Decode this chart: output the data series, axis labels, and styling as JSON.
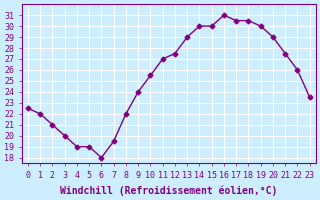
{
  "x": [
    0,
    1,
    2,
    3,
    4,
    5,
    6,
    7,
    8,
    9,
    10,
    11,
    12,
    13,
    14,
    15,
    16,
    17,
    18,
    19,
    20,
    21,
    22,
    23
  ],
  "y": [
    22.5,
    22,
    21,
    20,
    19,
    19,
    18,
    19.5,
    22,
    24,
    25.5,
    27,
    27.5,
    29,
    30,
    30,
    31,
    30.5,
    30.5,
    30,
    29,
    27.5,
    26,
    23.5
  ],
  "line_color": "#800080",
  "marker": "D",
  "marker_size": 2.5,
  "bg_color": "#cceeff",
  "grid_color": "#ffffff",
  "xlabel": "Windchill (Refroidissement éolien,°C)",
  "ylabel_ticks": [
    18,
    19,
    20,
    21,
    22,
    23,
    24,
    25,
    26,
    27,
    28,
    29,
    30,
    31
  ],
  "ylim": [
    17.5,
    32
  ],
  "xlim": [
    -0.5,
    23.5
  ],
  "tick_color": "#800080",
  "label_color": "#800080",
  "font_size": 7
}
